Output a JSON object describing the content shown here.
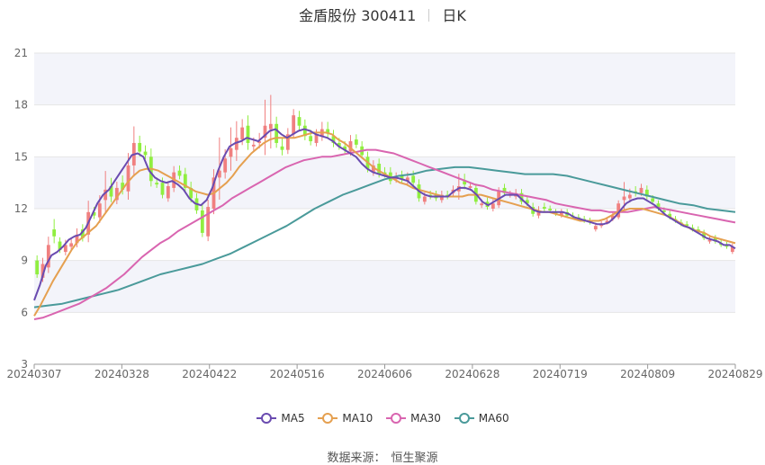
{
  "title": {
    "main": "金盾股份 300411",
    "period": "日K"
  },
  "source": {
    "label": "数据来源：",
    "value": "恒生聚源"
  },
  "colors": {
    "up": "#f08080",
    "down": "#90ee40",
    "ma5": "#6a4bb0",
    "ma10": "#e5a050",
    "ma30": "#d965b0",
    "ma60": "#4a9a9a",
    "band": "#f3f4fa",
    "grid": "#e6e6e6",
    "axis_text": "#666666"
  },
  "chart_data": {
    "type": "candlestick",
    "ylim": [
      3,
      21
    ],
    "yticks": [
      3,
      6,
      9,
      12,
      15,
      18,
      21
    ],
    "grid": true,
    "legend_position": "bottom-center",
    "xticks": [
      "20240307",
      "20240328",
      "20240422",
      "20240516",
      "20240606",
      "20240628",
      "20240719",
      "20240809",
      "20240829"
    ],
    "series": [
      {
        "name": "MA5",
        "key": "ma5"
      },
      {
        "name": "MA10",
        "key": "ma10"
      },
      {
        "name": "MA30",
        "key": "ma30"
      },
      {
        "name": "MA60",
        "key": "ma60"
      }
    ],
    "candles_close": [
      8.2,
      8.8,
      9.9,
      10.4,
      9.6,
      9.9,
      10.0,
      10.5,
      10.3,
      11.8,
      11.6,
      12.3,
      13.1,
      12.7,
      13.2,
      13.1,
      14.5,
      15.8,
      15.3,
      15.1,
      13.6,
      13.4,
      12.8,
      13.3,
      14.1,
      13.9,
      13.2,
      12.6,
      11.9,
      10.6,
      12.1,
      13.8,
      14.2,
      14.9,
      15.5,
      16.1,
      16.7,
      15.8,
      15.7,
      15.9,
      16.8,
      16.9,
      15.8,
      15.4,
      16.3,
      17.4,
      16.8,
      16.2,
      15.9,
      16.3,
      16.6,
      16.4,
      15.8,
      15.6,
      15.4,
      15.9,
      15.7,
      15.1,
      14.3,
      14.5,
      14.0,
      14.0,
      13.6,
      13.8,
      13.7,
      13.8,
      13.5,
      12.6,
      12.7,
      12.7,
      12.6,
      12.8,
      12.7,
      13.1,
      13.3,
      13.4,
      13.3,
      12.4,
      12.3,
      12.1,
      12.3,
      13.0,
      12.9,
      12.8,
      12.9,
      12.4,
      12.3,
      11.7,
      11.9,
      12.0,
      11.9,
      11.7,
      11.8,
      11.6,
      11.5,
      11.4,
      11.3,
      11.2,
      11.0,
      11.1,
      11.3,
      11.6,
      12.3,
      12.7,
      12.8,
      12.9,
      13.2,
      12.7,
      12.4,
      12.0,
      11.8,
      11.5,
      11.3,
      11.1,
      11.0,
      10.8,
      10.7,
      10.3,
      10.2,
      10.1,
      9.9,
      9.8,
      9.8
    ],
    "candles_open": [
      9.0,
      8.0,
      8.6,
      10.8,
      10.1,
      9.5,
      9.8,
      10.0,
      10.8,
      10.5,
      11.8,
      11.5,
      12.5,
      13.3,
      12.5,
      13.5,
      13.0,
      14.5,
      15.8,
      15.3,
      15.0,
      13.5,
      13.5,
      12.6,
      13.2,
      14.2,
      14.0,
      13.2,
      12.6,
      11.9,
      10.4,
      12.0,
      13.8,
      14.1,
      15.0,
      15.4,
      16.0,
      16.8,
      15.6,
      15.8,
      16.1,
      16.6,
      16.9,
      15.6,
      15.4,
      16.3,
      17.3,
      16.8,
      16.2,
      15.8,
      16.2,
      16.6,
      16.2,
      15.8,
      15.6,
      15.3,
      16.0,
      15.6,
      15.0,
      14.1,
      14.6,
      14.1,
      14.1,
      13.7,
      13.9,
      13.6,
      13.9,
      13.4,
      12.4,
      12.8,
      12.8,
      12.5,
      12.8,
      12.9,
      13.0,
      13.6,
      13.2,
      13.2,
      12.2,
      12.4,
      12.0,
      12.2,
      13.2,
      12.8,
      12.7,
      12.9,
      12.5,
      12.1,
      11.6,
      12.1,
      12.0,
      11.8,
      11.6,
      11.8,
      11.6,
      11.5,
      11.4,
      11.3,
      10.8,
      11.0,
      11.2,
      11.4,
      11.5,
      12.5,
      12.6,
      13.0,
      12.9,
      13.1,
      12.6,
      12.3,
      11.9,
      11.7,
      11.4,
      11.2,
      11.1,
      10.9,
      10.8,
      10.6,
      10.1,
      10.3,
      10.0,
      9.9,
      9.5
    ],
    "ma5": [
      6.7,
      7.6,
      8.7,
      9.3,
      9.5,
      9.8,
      10.2,
      10.4,
      10.5,
      10.9,
      11.6,
      12.3,
      12.8,
      13.1,
      13.6,
      14.1,
      14.6,
      15.1,
      15.2,
      15.0,
      14.2,
      13.8,
      13.6,
      13.5,
      13.6,
      13.4,
      13.1,
      12.6,
      12.3,
      12.2,
      12.5,
      13.2,
      14.2,
      15.0,
      15.6,
      15.8,
      15.9,
      16.1,
      16.0,
      15.9,
      16.2,
      16.5,
      16.6,
      16.3,
      16.1,
      16.3,
      16.5,
      16.6,
      16.5,
      16.3,
      16.2,
      16.1,
      15.9,
      15.6,
      15.4,
      15.2,
      15.0,
      14.6,
      14.3,
      14.1,
      14.0,
      13.9,
      13.8,
      13.8,
      13.7,
      13.6,
      13.3,
      13.0,
      12.8,
      12.7,
      12.7,
      12.7,
      12.7,
      13.0,
      13.2,
      13.2,
      13.1,
      12.8,
      12.4,
      12.2,
      12.4,
      12.6,
      12.8,
      12.8,
      12.8,
      12.5,
      12.2,
      11.9,
      11.8,
      11.8,
      11.8,
      11.8,
      11.8,
      11.7,
      11.5,
      11.4,
      11.3,
      11.2,
      11.1,
      11.1,
      11.2,
      11.5,
      11.9,
      12.3,
      12.5,
      12.6,
      12.6,
      12.4,
      12.2,
      11.9,
      11.6,
      11.4,
      11.2,
      11.0,
      10.9,
      10.7,
      10.5,
      10.3,
      10.2,
      10.1,
      9.9,
      9.9,
      9.7
    ],
    "ma10": [
      5.8,
      6.4,
      7.1,
      7.8,
      8.4,
      9.0,
      9.6,
      10.1,
      10.4,
      10.7,
      11.0,
      11.5,
      12.0,
      12.5,
      13.0,
      13.5,
      13.9,
      14.2,
      14.3,
      14.3,
      14.2,
      14.0,
      13.8,
      13.6,
      13.4,
      13.2,
      13.0,
      12.9,
      12.8,
      12.9,
      13.2,
      13.5,
      13.9,
      14.4,
      14.8,
      15.2,
      15.5,
      15.8,
      16.0,
      16.1,
      16.1,
      16.1,
      16.1,
      16.2,
      16.3,
      16.4,
      16.4,
      16.4,
      16.3,
      16.0,
      15.8,
      15.5,
      15.2,
      14.9,
      14.6,
      14.3,
      14.1,
      13.9,
      13.7,
      13.5,
      13.4,
      13.2,
      13.1,
      13.0,
      12.9,
      12.8,
      12.7,
      12.7,
      12.7,
      12.7,
      12.8,
      12.8,
      12.8,
      12.7,
      12.6,
      12.5,
      12.4,
      12.3,
      12.2,
      12.1,
      12.0,
      11.9,
      11.8,
      11.8,
      11.7,
      11.6,
      11.5,
      11.4,
      11.3,
      11.3,
      11.3,
      11.3,
      11.4,
      11.6,
      11.8,
      11.9,
      12.0,
      12.0,
      12.0,
      11.9,
      11.8,
      11.7,
      11.6,
      11.4,
      11.2,
      11.0,
      10.8,
      10.7,
      10.6,
      10.4,
      10.3,
      10.2,
      10.1,
      10.0
    ],
    "ma30": [
      5.6,
      5.7,
      5.9,
      6.1,
      6.3,
      6.5,
      6.8,
      7.1,
      7.4,
      7.8,
      8.2,
      8.7,
      9.2,
      9.6,
      10.0,
      10.3,
      10.7,
      11.0,
      11.3,
      11.6,
      11.9,
      12.2,
      12.6,
      12.9,
      13.2,
      13.5,
      13.8,
      14.1,
      14.4,
      14.6,
      14.8,
      14.9,
      15.0,
      15.0,
      15.1,
      15.2,
      15.3,
      15.4,
      15.4,
      15.3,
      15.2,
      15.0,
      14.8,
      14.6,
      14.4,
      14.2,
      14.0,
      13.8,
      13.6,
      13.4,
      13.3,
      13.1,
      13.0,
      12.9,
      12.8,
      12.7,
      12.6,
      12.5,
      12.3,
      12.2,
      12.1,
      12.0,
      11.9,
      11.9,
      11.8,
      11.8,
      11.8,
      11.9,
      12.0,
      12.1,
      12.0,
      11.9,
      11.8,
      11.7,
      11.6,
      11.5,
      11.4,
      11.3,
      11.2
    ],
    "ma60": [
      6.3,
      6.4,
      6.5,
      6.7,
      6.9,
      7.1,
      7.3,
      7.6,
      7.9,
      8.2,
      8.4,
      8.6,
      8.8,
      9.1,
      9.4,
      9.8,
      10.2,
      10.6,
      11.0,
      11.5,
      12.0,
      12.4,
      12.8,
      13.1,
      13.4,
      13.7,
      13.9,
      14.0,
      14.2,
      14.3,
      14.4,
      14.4,
      14.3,
      14.2,
      14.1,
      14.0,
      14.0,
      14.0,
      13.9,
      13.7,
      13.5,
      13.3,
      13.1,
      12.9,
      12.7,
      12.5,
      12.3,
      12.2,
      12.0,
      11.9,
      11.8
    ],
    "candle_range_extra": [
      0.5,
      0.6,
      0.8,
      1.0,
      0.4,
      0.5,
      0.5,
      0.6,
      0.5,
      1.1,
      0.5,
      0.8,
      1.8,
      0.8,
      0.6,
      0.7,
      1.2,
      1.6,
      0.7,
      0.6,
      0.8,
      0.5,
      0.5,
      0.5,
      0.6,
      0.5,
      0.6,
      0.6,
      0.5,
      0.6,
      0.7,
      0.8,
      3.2,
      0.9,
      2.0,
      1.6,
      0.8,
      1.0,
      0.7,
      0.8,
      2.5,
      2.8,
      0.7,
      0.8,
      0.6,
      0.6,
      0.6,
      0.6,
      0.6,
      0.5,
      0.7,
      0.7,
      0.6,
      0.5,
      0.5,
      0.6,
      0.5,
      0.5,
      0.5,
      0.5,
      0.5,
      0.5,
      0.5,
      0.5,
      0.5,
      0.5,
      0.5,
      0.5,
      0.4,
      0.4,
      0.4,
      0.4,
      0.4,
      0.4,
      1.2,
      0.7,
      0.4,
      0.4,
      0.4,
      0.4,
      0.4,
      0.4,
      0.4,
      0.4,
      0.4,
      0.4,
      0.4,
      0.4,
      0.4,
      0.4,
      0.3,
      0.3,
      0.3,
      0.3,
      0.3,
      0.3,
      0.3,
      0.3,
      0.3,
      0.3,
      0.3,
      0.3,
      0.3,
      1.4,
      0.6,
      0.5,
      0.4,
      0.4,
      0.3,
      0.3,
      0.3,
      0.3,
      0.3,
      0.3,
      0.3,
      0.3,
      0.3,
      0.3,
      0.3,
      0.3,
      0.3,
      0.3,
      0.3
    ]
  }
}
